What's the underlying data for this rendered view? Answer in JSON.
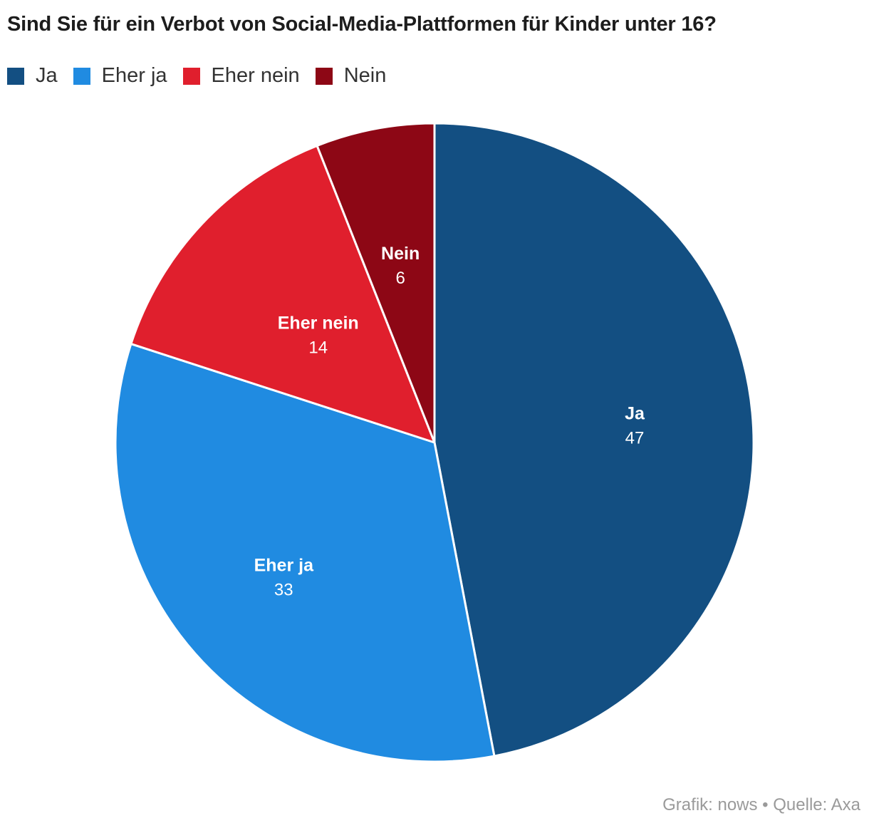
{
  "chart_data": {
    "type": "pie",
    "title": "Sind Sie für ein Verbot von Social-Media-Plattformen für Kinder unter 16?",
    "categories": [
      "Ja",
      "Eher ja",
      "Eher nein",
      "Nein"
    ],
    "values": [
      47,
      33,
      14,
      6
    ],
    "colors": [
      "#134f82",
      "#208be1",
      "#e01f2d",
      "#8d0715"
    ],
    "legend": [
      "Ja",
      "Eher ja",
      "Eher nein",
      "Nein"
    ],
    "legend_position": "top-left",
    "start": "12 o'clock, clockwise"
  },
  "source": "Grafik: nows • Quelle: Axa"
}
